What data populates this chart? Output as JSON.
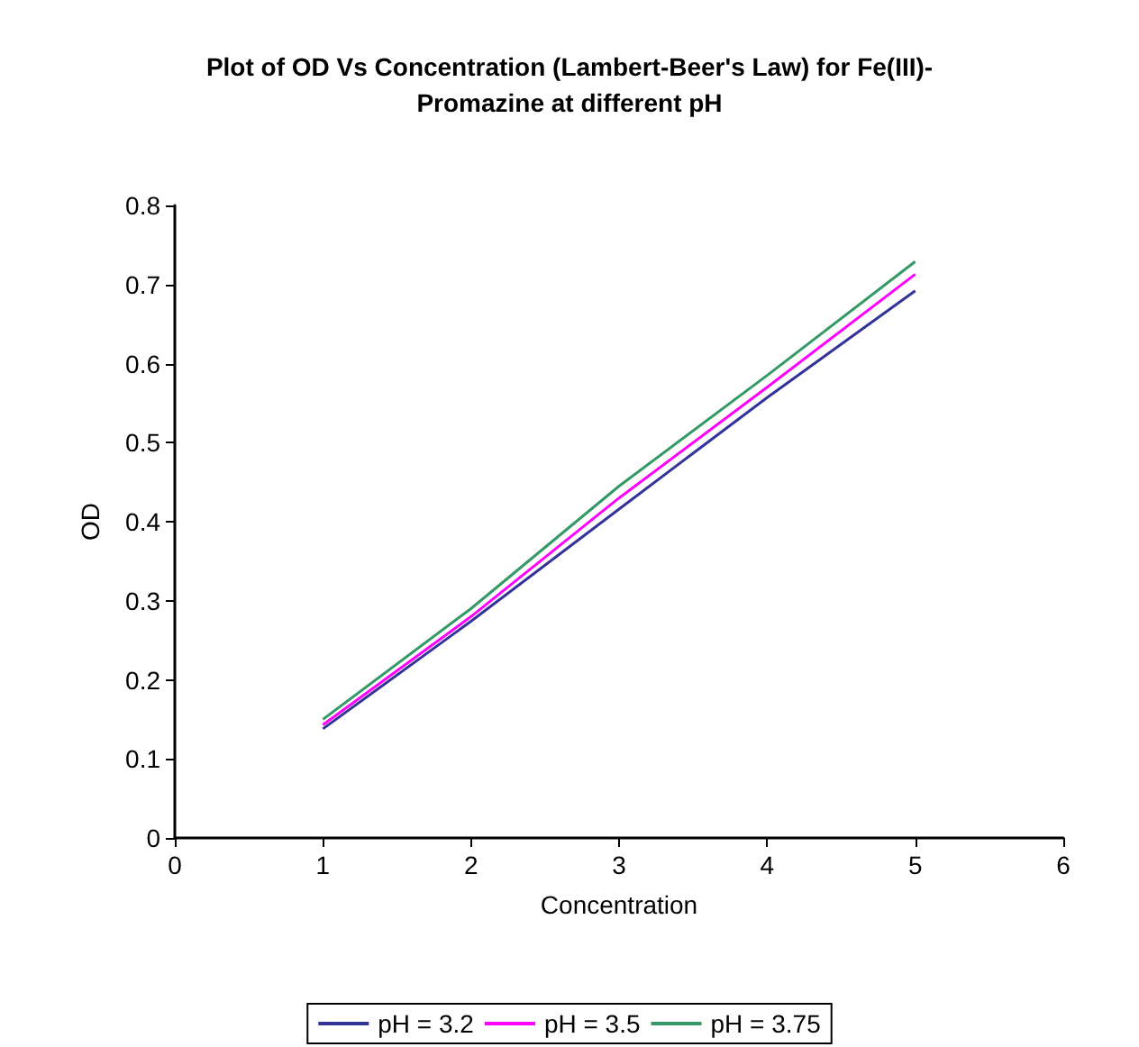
{
  "chart_data": {
    "type": "line",
    "title": "Plot of OD Vs Concentration (Lambert-Beer's Law) for Fe(III)-\nPromazine at different pH",
    "xlabel": "Concentration",
    "ylabel": "OD",
    "x": [
      1,
      2,
      3,
      4,
      5
    ],
    "series": [
      {
        "name": "pH = 3.2",
        "color": "#333399",
        "values": [
          0.138,
          0.274,
          0.416,
          0.557,
          0.692
        ]
      },
      {
        "name": "pH = 3.5",
        "color": "#ff00ff",
        "values": [
          0.143,
          0.28,
          0.43,
          0.57,
          0.713
        ]
      },
      {
        "name": "pH = 3.75",
        "color": "#339966",
        "values": [
          0.15,
          0.29,
          0.445,
          0.585,
          0.729
        ]
      }
    ],
    "xlim": [
      0,
      6
    ],
    "xticks": [
      0,
      1,
      2,
      3,
      4,
      5,
      6
    ],
    "ylim": [
      0,
      0.8
    ],
    "yticks": [
      0,
      0.1,
      0.2,
      0.3,
      0.4,
      0.5,
      0.6,
      0.7,
      0.8
    ],
    "grid": false,
    "legend": "bottom",
    "marker": "none",
    "line_style": "solid"
  }
}
